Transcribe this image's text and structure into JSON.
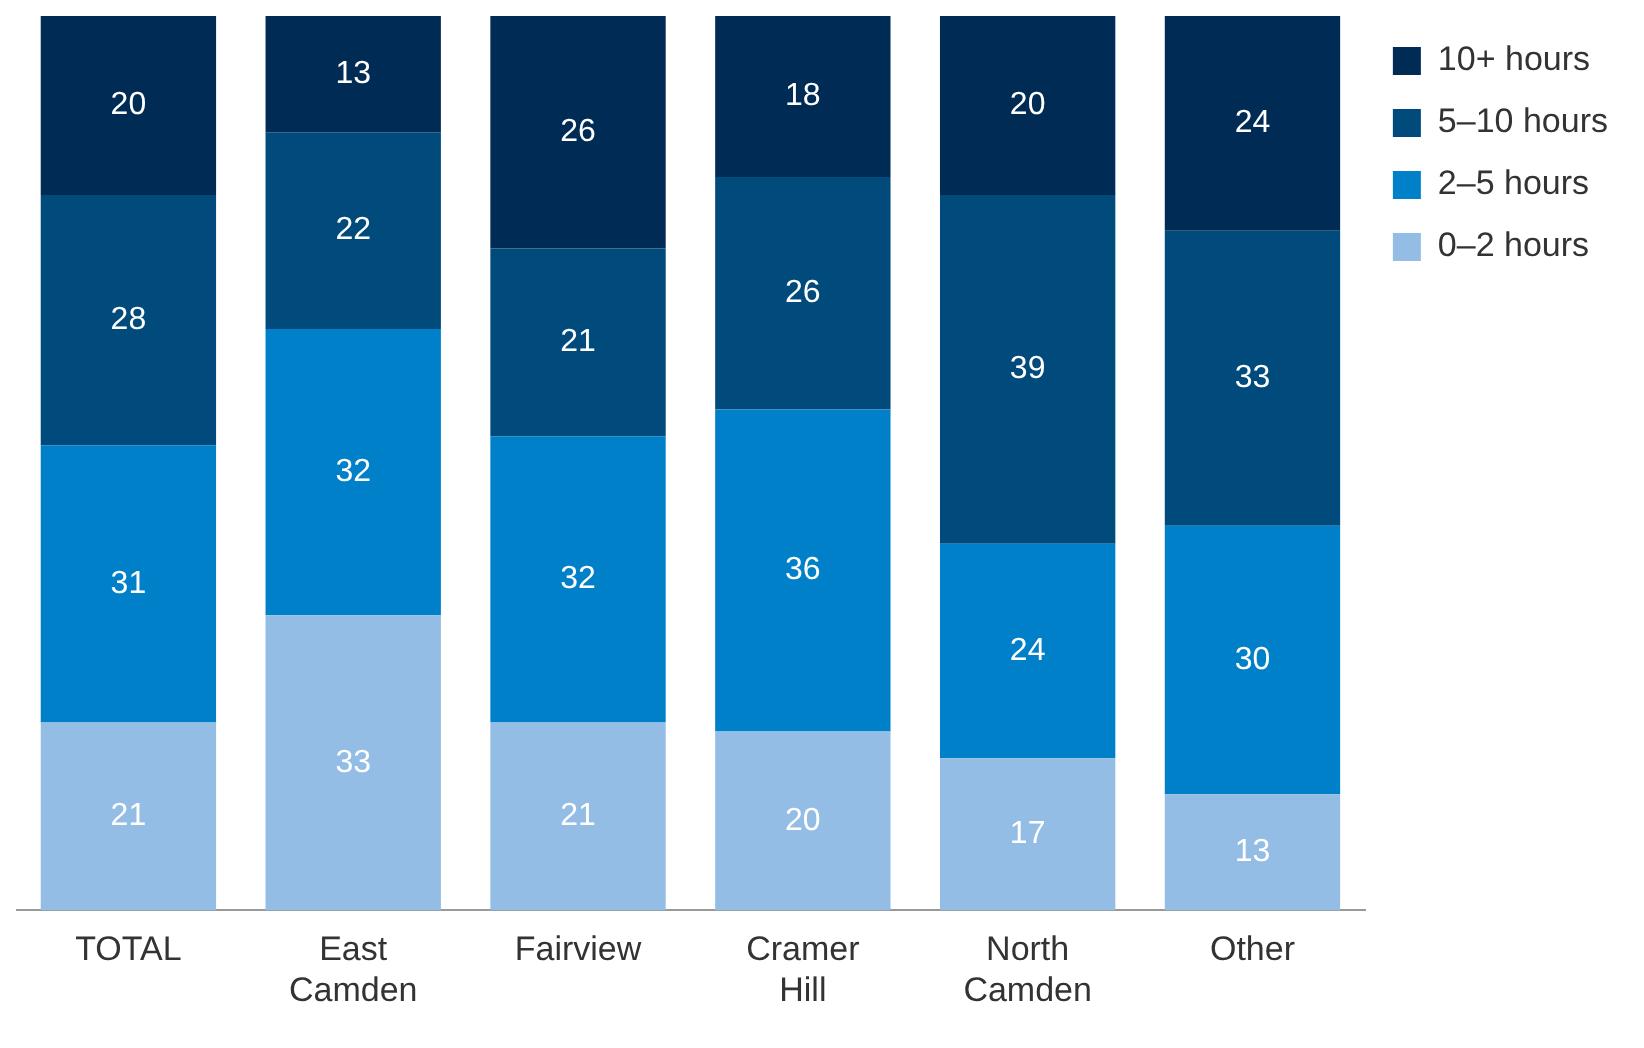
{
  "chart_data": {
    "type": "bar",
    "stacked": true,
    "categories": [
      "TOTAL",
      "East Camden",
      "Fairview",
      "Cramer Hill",
      "North Camden",
      "Other"
    ],
    "series": [
      {
        "name": "0–2 hours",
        "color": "#93bde4",
        "values": [
          21,
          33,
          21,
          20,
          17,
          13
        ]
      },
      {
        "name": "2–5 hours",
        "color": "#0080c8",
        "values": [
          31,
          32,
          32,
          36,
          24,
          30
        ]
      },
      {
        "name": "5–10 hours",
        "color": "#004a7c",
        "values": [
          28,
          22,
          21,
          26,
          39,
          33
        ]
      },
      {
        "name": "10+ hours",
        "color": "#002b54",
        "values": [
          20,
          13,
          26,
          18,
          20,
          24
        ]
      }
    ],
    "data_labels": true,
    "legend": "top right",
    "grid": false
  }
}
